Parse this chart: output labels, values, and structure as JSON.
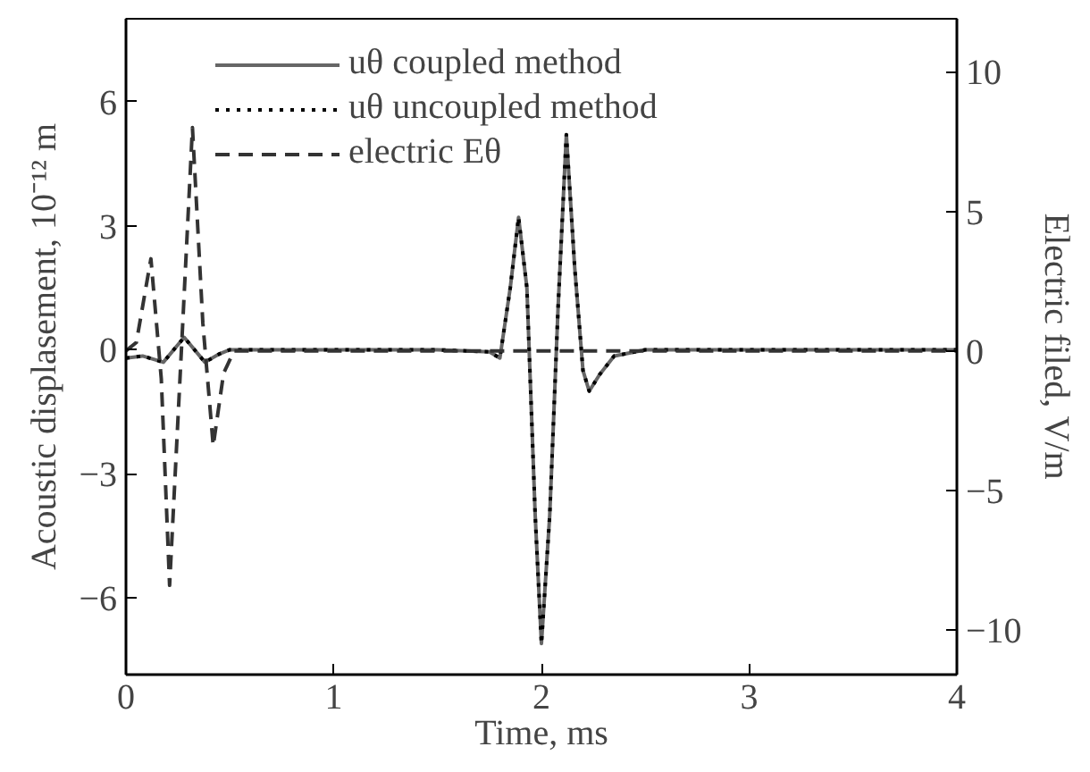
{
  "chart_data": {
    "type": "line",
    "xlabel": "Time, ms",
    "ylabel": "Acoustic displasement, 10⁻¹² m",
    "y2label": "Electric filed, V/m",
    "xlim": [
      0,
      4
    ],
    "xticks": [
      0,
      1,
      2,
      3,
      4
    ],
    "ylim": [
      -7.85,
      8.0
    ],
    "yticks": [
      -6,
      -3,
      0,
      3,
      6
    ],
    "y2lim": [
      -11.6,
      11.9
    ],
    "y2ticks": [
      -10,
      -5,
      0,
      5,
      10
    ],
    "grid": false,
    "legend": "top left",
    "series": [
      {
        "name": "uθ coupled method",
        "color": "#666666",
        "line_style": "solid",
        "x": [
          0,
          0.08,
          0.18,
          0.28,
          0.38,
          0.45,
          0.5,
          0.6,
          1.0,
          1.5,
          1.75,
          1.8,
          1.85,
          1.89,
          1.93,
          1.97,
          2.0,
          2.04,
          2.08,
          2.12,
          2.16,
          2.2,
          2.23,
          2.28,
          2.35,
          2.5,
          3.0,
          4.0
        ],
        "values": [
          -0.2,
          -0.15,
          -0.3,
          0.3,
          -0.3,
          -0.1,
          0,
          0,
          0,
          0,
          -0.05,
          -0.2,
          1.5,
          3.2,
          1.5,
          -4.0,
          -7.1,
          -4.0,
          1.0,
          5.2,
          2.0,
          -0.5,
          -1.0,
          -0.6,
          -0.15,
          0,
          0,
          0
        ]
      },
      {
        "name": "uθ uncoupled method",
        "color": "#000000",
        "line_style": "dotted",
        "x": [
          0,
          0.08,
          0.18,
          0.28,
          0.38,
          0.45,
          0.5,
          0.6,
          1.0,
          1.5,
          1.75,
          1.8,
          1.85,
          1.89,
          1.93,
          1.97,
          2.0,
          2.04,
          2.08,
          2.12,
          2.16,
          2.2,
          2.23,
          2.28,
          2.35,
          2.5,
          3.0,
          4.0
        ],
        "values": [
          -0.2,
          -0.15,
          -0.3,
          0.3,
          -0.3,
          -0.1,
          0,
          0,
          0,
          0,
          -0.05,
          -0.2,
          1.5,
          3.2,
          1.5,
          -4.0,
          -7.1,
          -4.0,
          1.0,
          5.2,
          2.0,
          -0.5,
          -1.0,
          -0.6,
          -0.15,
          0,
          0,
          0
        ]
      },
      {
        "name": "electric Eθ",
        "color": "#333333",
        "line_style": "dashed",
        "axis": "y2",
        "x": [
          0,
          0.05,
          0.12,
          0.17,
          0.21,
          0.26,
          0.32,
          0.37,
          0.42,
          0.47,
          0.52,
          1.0,
          2.0,
          3.0,
          4.0
        ],
        "values": [
          0,
          0.3,
          3.3,
          -1.0,
          -8.4,
          -1.0,
          8.0,
          1.0,
          -3.4,
          -0.8,
          0,
          0,
          0,
          0,
          0
        ]
      }
    ]
  }
}
